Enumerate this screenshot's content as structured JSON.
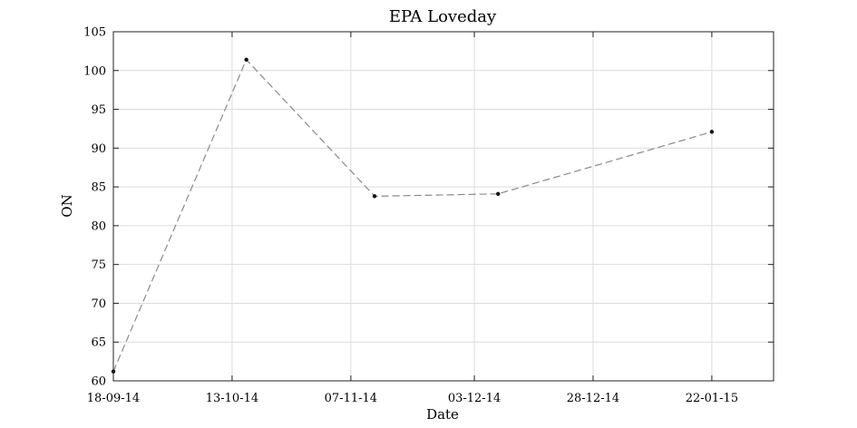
{
  "chart_data": {
    "type": "line",
    "title": "EPA Loveday",
    "xlabel": "Date",
    "ylabel": "ON",
    "x_ticks": [
      "18-09-14",
      "13-10-14",
      "07-11-14",
      "03-12-14",
      "28-12-14",
      "22-01-15"
    ],
    "y_ticks": [
      60,
      65,
      70,
      75,
      80,
      85,
      90,
      95,
      100,
      105
    ],
    "xlim": [
      "2014-09-18",
      "2015-02-04"
    ],
    "ylim": [
      60,
      105
    ],
    "grid": true,
    "series": [
      {
        "x": [
          "2014-09-18",
          "2014-10-16",
          "2014-11-12",
          "2014-12-08",
          "2015-01-22"
        ],
        "values": [
          61.2,
          101.4,
          83.8,
          84.1,
          92.1
        ]
      }
    ]
  }
}
